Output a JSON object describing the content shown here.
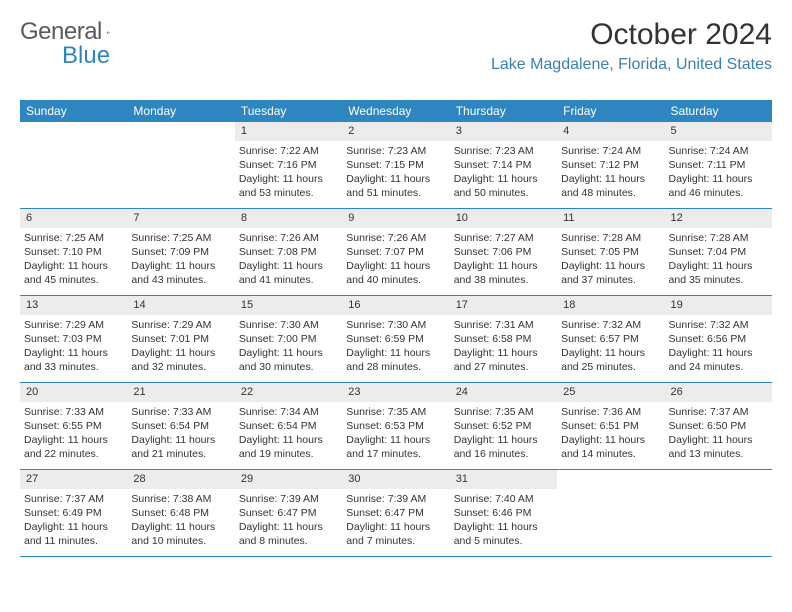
{
  "logo": {
    "text1": "General",
    "text2": "Blue"
  },
  "title": "October 2024",
  "location": "Lake Magdalene, Florida, United States",
  "colors": {
    "headerBar": "#2e86c1",
    "rowDivider": "#2e86c1",
    "dayNumBg": "#ececec",
    "locationText": "#3b7fb8",
    "bodyText": "#333333"
  },
  "dayNames": [
    "Sunday",
    "Monday",
    "Tuesday",
    "Wednesday",
    "Thursday",
    "Friday",
    "Saturday"
  ],
  "weeks": [
    [
      {
        "n": "",
        "sr": "",
        "ss": "",
        "dl": ""
      },
      {
        "n": "",
        "sr": "",
        "ss": "",
        "dl": ""
      },
      {
        "n": "1",
        "sr": "Sunrise: 7:22 AM",
        "ss": "Sunset: 7:16 PM",
        "dl": "Daylight: 11 hours and 53 minutes."
      },
      {
        "n": "2",
        "sr": "Sunrise: 7:23 AM",
        "ss": "Sunset: 7:15 PM",
        "dl": "Daylight: 11 hours and 51 minutes."
      },
      {
        "n": "3",
        "sr": "Sunrise: 7:23 AM",
        "ss": "Sunset: 7:14 PM",
        "dl": "Daylight: 11 hours and 50 minutes."
      },
      {
        "n": "4",
        "sr": "Sunrise: 7:24 AM",
        "ss": "Sunset: 7:12 PM",
        "dl": "Daylight: 11 hours and 48 minutes."
      },
      {
        "n": "5",
        "sr": "Sunrise: 7:24 AM",
        "ss": "Sunset: 7:11 PM",
        "dl": "Daylight: 11 hours and 46 minutes."
      }
    ],
    [
      {
        "n": "6",
        "sr": "Sunrise: 7:25 AM",
        "ss": "Sunset: 7:10 PM",
        "dl": "Daylight: 11 hours and 45 minutes."
      },
      {
        "n": "7",
        "sr": "Sunrise: 7:25 AM",
        "ss": "Sunset: 7:09 PM",
        "dl": "Daylight: 11 hours and 43 minutes."
      },
      {
        "n": "8",
        "sr": "Sunrise: 7:26 AM",
        "ss": "Sunset: 7:08 PM",
        "dl": "Daylight: 11 hours and 41 minutes."
      },
      {
        "n": "9",
        "sr": "Sunrise: 7:26 AM",
        "ss": "Sunset: 7:07 PM",
        "dl": "Daylight: 11 hours and 40 minutes."
      },
      {
        "n": "10",
        "sr": "Sunrise: 7:27 AM",
        "ss": "Sunset: 7:06 PM",
        "dl": "Daylight: 11 hours and 38 minutes."
      },
      {
        "n": "11",
        "sr": "Sunrise: 7:28 AM",
        "ss": "Sunset: 7:05 PM",
        "dl": "Daylight: 11 hours and 37 minutes."
      },
      {
        "n": "12",
        "sr": "Sunrise: 7:28 AM",
        "ss": "Sunset: 7:04 PM",
        "dl": "Daylight: 11 hours and 35 minutes."
      }
    ],
    [
      {
        "n": "13",
        "sr": "Sunrise: 7:29 AM",
        "ss": "Sunset: 7:03 PM",
        "dl": "Daylight: 11 hours and 33 minutes."
      },
      {
        "n": "14",
        "sr": "Sunrise: 7:29 AM",
        "ss": "Sunset: 7:01 PM",
        "dl": "Daylight: 11 hours and 32 minutes."
      },
      {
        "n": "15",
        "sr": "Sunrise: 7:30 AM",
        "ss": "Sunset: 7:00 PM",
        "dl": "Daylight: 11 hours and 30 minutes."
      },
      {
        "n": "16",
        "sr": "Sunrise: 7:30 AM",
        "ss": "Sunset: 6:59 PM",
        "dl": "Daylight: 11 hours and 28 minutes."
      },
      {
        "n": "17",
        "sr": "Sunrise: 7:31 AM",
        "ss": "Sunset: 6:58 PM",
        "dl": "Daylight: 11 hours and 27 minutes."
      },
      {
        "n": "18",
        "sr": "Sunrise: 7:32 AM",
        "ss": "Sunset: 6:57 PM",
        "dl": "Daylight: 11 hours and 25 minutes."
      },
      {
        "n": "19",
        "sr": "Sunrise: 7:32 AM",
        "ss": "Sunset: 6:56 PM",
        "dl": "Daylight: 11 hours and 24 minutes."
      }
    ],
    [
      {
        "n": "20",
        "sr": "Sunrise: 7:33 AM",
        "ss": "Sunset: 6:55 PM",
        "dl": "Daylight: 11 hours and 22 minutes."
      },
      {
        "n": "21",
        "sr": "Sunrise: 7:33 AM",
        "ss": "Sunset: 6:54 PM",
        "dl": "Daylight: 11 hours and 21 minutes."
      },
      {
        "n": "22",
        "sr": "Sunrise: 7:34 AM",
        "ss": "Sunset: 6:54 PM",
        "dl": "Daylight: 11 hours and 19 minutes."
      },
      {
        "n": "23",
        "sr": "Sunrise: 7:35 AM",
        "ss": "Sunset: 6:53 PM",
        "dl": "Daylight: 11 hours and 17 minutes."
      },
      {
        "n": "24",
        "sr": "Sunrise: 7:35 AM",
        "ss": "Sunset: 6:52 PM",
        "dl": "Daylight: 11 hours and 16 minutes."
      },
      {
        "n": "25",
        "sr": "Sunrise: 7:36 AM",
        "ss": "Sunset: 6:51 PM",
        "dl": "Daylight: 11 hours and 14 minutes."
      },
      {
        "n": "26",
        "sr": "Sunrise: 7:37 AM",
        "ss": "Sunset: 6:50 PM",
        "dl": "Daylight: 11 hours and 13 minutes."
      }
    ],
    [
      {
        "n": "27",
        "sr": "Sunrise: 7:37 AM",
        "ss": "Sunset: 6:49 PM",
        "dl": "Daylight: 11 hours and 11 minutes."
      },
      {
        "n": "28",
        "sr": "Sunrise: 7:38 AM",
        "ss": "Sunset: 6:48 PM",
        "dl": "Daylight: 11 hours and 10 minutes."
      },
      {
        "n": "29",
        "sr": "Sunrise: 7:39 AM",
        "ss": "Sunset: 6:47 PM",
        "dl": "Daylight: 11 hours and 8 minutes."
      },
      {
        "n": "30",
        "sr": "Sunrise: 7:39 AM",
        "ss": "Sunset: 6:47 PM",
        "dl": "Daylight: 11 hours and 7 minutes."
      },
      {
        "n": "31",
        "sr": "Sunrise: 7:40 AM",
        "ss": "Sunset: 6:46 PM",
        "dl": "Daylight: 11 hours and 5 minutes."
      },
      {
        "n": "",
        "sr": "",
        "ss": "",
        "dl": ""
      },
      {
        "n": "",
        "sr": "",
        "ss": "",
        "dl": ""
      }
    ]
  ]
}
